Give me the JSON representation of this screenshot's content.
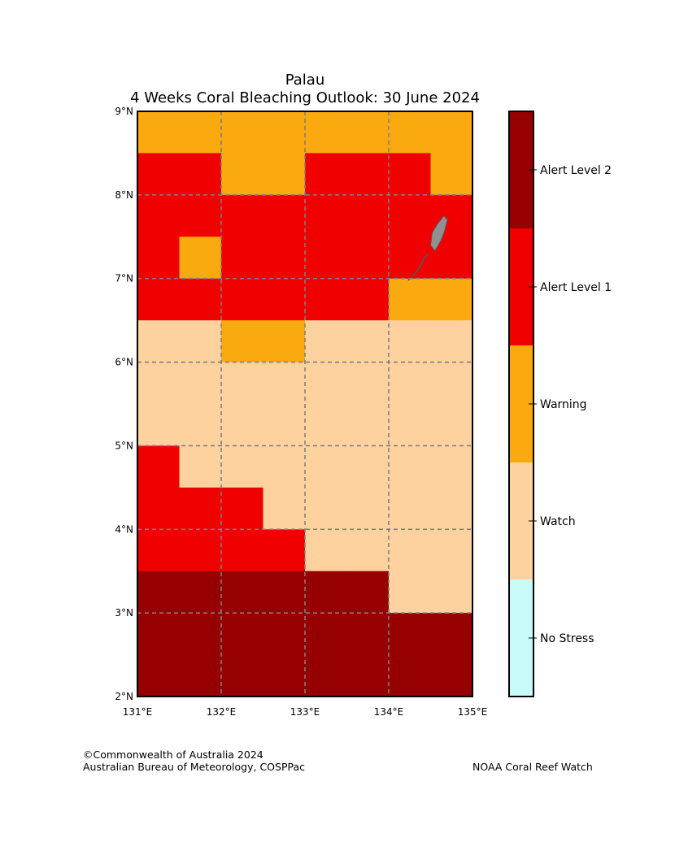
{
  "title": {
    "line1": "Palau",
    "line2": "4 Weeks Coral Bleaching Outlook: 30 June 2024"
  },
  "map": {
    "lon_range": [
      131,
      135
    ],
    "lat_range": [
      2,
      9
    ],
    "cell_size_deg": 0.5,
    "x_ticks": [
      {
        "value": 131,
        "label": "131°E"
      },
      {
        "value": 132,
        "label": "132°E"
      },
      {
        "value": 133,
        "label": "133°E"
      },
      {
        "value": 134,
        "label": "134°E"
      },
      {
        "value": 135,
        "label": "135°E"
      }
    ],
    "y_ticks": [
      {
        "value": 2,
        "label": "2°N"
      },
      {
        "value": 3,
        "label": "3°N"
      },
      {
        "value": 4,
        "label": "4°N"
      },
      {
        "value": 5,
        "label": "5°N"
      },
      {
        "value": 6,
        "label": "6°N"
      },
      {
        "value": 7,
        "label": "7°N"
      },
      {
        "value": 8,
        "label": "8°N"
      },
      {
        "value": 9,
        "label": "9°N"
      }
    ],
    "grid_rows_north_to_south": [
      "WWWWWWWW",
      "AAWWAAAW",
      "AAAAAAAA",
      "AWAAAAAA",
      "AAAAAAWW",
      "hhWWhhhh",
      "hhhhhhhh",
      "hhhhhhhh",
      "Ahhhhhhh",
      "AAAhhhhh",
      "AAAAhhhh",
      "BBBBBBhh",
      "BBBBBBBB",
      "BBBBBBBB"
    ],
    "category_codes": {
      "h": "Watch",
      "W": "Warning",
      "A": "Alert Level 1",
      "B": "Alert Level 2",
      "N": "No Stress"
    },
    "land_color": "#909090",
    "grid_line_color": "#808080"
  },
  "legend": {
    "categories": [
      {
        "code": "B",
        "label": "Alert Level 2",
        "color": "#960000"
      },
      {
        "code": "A",
        "label": "Alert Level 1",
        "color": "#f00000"
      },
      {
        "code": "W",
        "label": "Warning",
        "color": "#faaa0f"
      },
      {
        "code": "h",
        "label": "Watch",
        "color": "#fdd29e"
      },
      {
        "code": "N",
        "label": "No Stress",
        "color": "#c8fafa"
      }
    ]
  },
  "credits": {
    "left_line1": "©Commonwealth of Australia 2024",
    "left_line2": "Australian Bureau of Meteorology, COSPPac",
    "right": "NOAA Coral Reef Watch"
  }
}
